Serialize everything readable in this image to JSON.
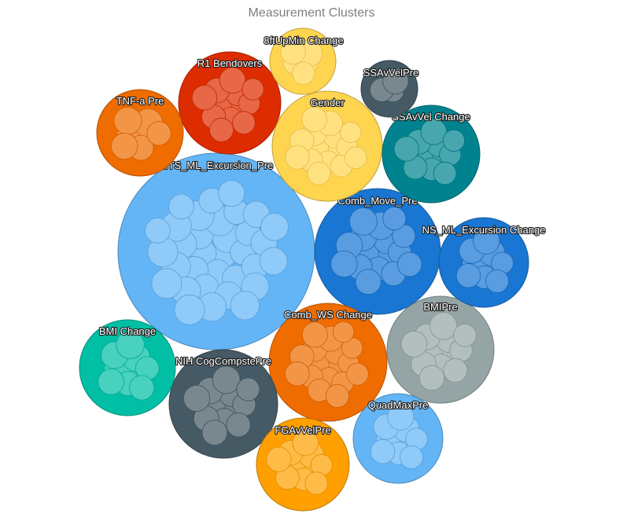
{
  "chart_data": {
    "type": "bubble-cluster",
    "title": "Measurement Clusters",
    "clusters": [
      {
        "label": "MTS_ML_Excursion_Pre",
        "color": "#64b5f6",
        "members": 33
      },
      {
        "label": "Comb_Move_Pre",
        "color": "#1976d2",
        "members": 16
      },
      {
        "label": "Comb_WS Change",
        "color": "#ef6c00",
        "members": 17
      },
      {
        "label": "R1 Bendovers",
        "color": "#dd2c00",
        "members": 12
      },
      {
        "label": "Gender",
        "color": "#ffd54f",
        "members": 15
      },
      {
        "label": "SSAvVel Change",
        "color": "#00838f",
        "members": 11
      },
      {
        "label": "BMIPre",
        "color": "#95a5a6",
        "members": 12
      },
      {
        "label": "NIH CogCompstePre",
        "color": "#455a64",
        "members": 12
      },
      {
        "label": "FGAvVelPre",
        "color": "#ffa000",
        "members": 10
      },
      {
        "label": "QuadMaxPre",
        "color": "#64b5f6",
        "members": 9
      },
      {
        "label": "NS_ML_Excursion Change",
        "color": "#1976d2",
        "members": 9
      },
      {
        "label": "BMI Change",
        "color": "#00bfa5",
        "members": 9
      },
      {
        "label": "TNF-a Pre",
        "color": "#ef6c00",
        "members": 7
      },
      {
        "label": "8ftUpMin Change",
        "color": "#ffd54f",
        "members": 5
      },
      {
        "label": "SSAvVelPre",
        "color": "#455a64",
        "members": 3
      }
    ]
  }
}
